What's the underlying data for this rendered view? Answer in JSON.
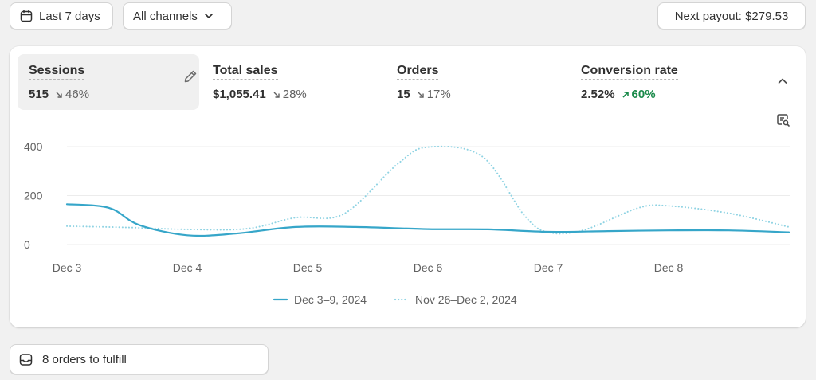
{
  "toolbar": {
    "date_label": "Last 7 days",
    "channels_label": "All channels",
    "payout_label": "Next payout: $279.53"
  },
  "metrics": [
    {
      "label": "Sessions",
      "value": "515",
      "change": "46%",
      "direction": "down",
      "active": true
    },
    {
      "label": "Total sales",
      "value": "$1,055.41",
      "change": "28%",
      "direction": "down"
    },
    {
      "label": "Orders",
      "value": "15",
      "change": "17%",
      "direction": "down"
    },
    {
      "label": "Conversion rate",
      "value": "2.52%",
      "change": "60%",
      "direction": "up"
    }
  ],
  "chart_data": {
    "type": "line",
    "x": [
      "Dec 3",
      "Dec 4",
      "Dec 5",
      "Dec 6",
      "Dec 7",
      "Dec 8",
      "Dec 9"
    ],
    "x_tick_labels": [
      "Dec 3",
      "Dec 4",
      "Dec 5",
      "Dec 6",
      "Dec 7",
      "Dec 8"
    ],
    "y_ticks": [
      0,
      200,
      400
    ],
    "ylim": [
      0,
      400
    ],
    "grid": true,
    "legend_position": "bottom-center",
    "series": [
      {
        "name": "Dec 3–9, 2024",
        "style": "solid",
        "color": "#36a6c9",
        "x": [
          0,
          0.35,
          0.6,
          1.0,
          1.4,
          1.9,
          2.4,
          3.0,
          3.5,
          4.0,
          4.5,
          5.0,
          5.5,
          6.0
        ],
        "values": [
          165,
          150,
          80,
          38,
          45,
          72,
          72,
          63,
          62,
          52,
          55,
          58,
          58,
          50
        ]
      },
      {
        "name": "Nov 26–Dec 2, 2024",
        "style": "dotted",
        "color": "#8fd3e3",
        "x": [
          0,
          0.5,
          1.0,
          1.5,
          1.9,
          2.3,
          2.75,
          3.0,
          3.45,
          3.8,
          4.0,
          4.3,
          4.75,
          5.0,
          5.5,
          6.0
        ],
        "values": [
          75,
          70,
          62,
          65,
          110,
          125,
          330,
          398,
          360,
          120,
          50,
          60,
          150,
          158,
          128,
          72
        ]
      }
    ]
  },
  "fulfill": {
    "label": "8 orders to fulfill"
  },
  "colors": {
    "accent_line": "#36a6c9",
    "comparison_line": "#8fd3e3",
    "positive_change": "#1a8a4a"
  }
}
